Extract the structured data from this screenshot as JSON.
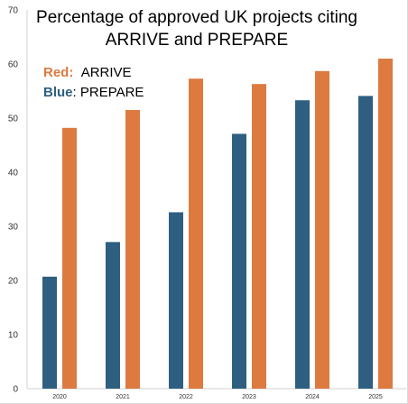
{
  "chart_data": {
    "type": "bar",
    "title_line1": "Percentage of approved UK projects citing",
    "title_line2": "ARRIVE and PREPARE",
    "categories": [
      "2020",
      "2021",
      "2022",
      "2023",
      "2024",
      "2025"
    ],
    "series": [
      {
        "name": "PREPARE",
        "color": "#2e5f80",
        "values": [
          20.7,
          27.1,
          32.6,
          47.1,
          53.3,
          54.1
        ]
      },
      {
        "name": "ARRIVE",
        "color": "#dc7a40",
        "values": [
          48.2,
          51.5,
          57.3,
          56.3,
          58.7,
          61.0
        ]
      }
    ],
    "legend": {
      "red_key": "Red:",
      "red_label": "ARRIVE",
      "blue_key": "Blue",
      "blue_label": ": PREPARE"
    },
    "ylim": [
      0,
      70
    ],
    "yticks": [
      0,
      10,
      20,
      30,
      40,
      50,
      60,
      70
    ],
    "grid": false,
    "legend_position": "top-left"
  }
}
